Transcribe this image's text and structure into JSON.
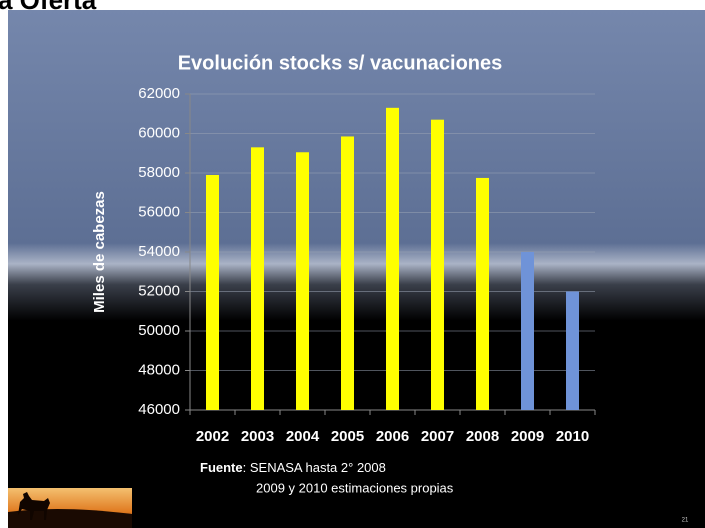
{
  "slide_heading": "a Oferta",
  "chart_data": {
    "type": "bar",
    "title": "Evolución stocks s/ vacunaciones",
    "y_label": "Miles de cabezas",
    "categories": [
      "2002",
      "2003",
      "2004",
      "2005",
      "2006",
      "2007",
      "2008",
      "2009",
      "2010"
    ],
    "values": [
      57900,
      59300,
      59050,
      59850,
      61300,
      60700,
      57750,
      54000,
      52000
    ],
    "colors": [
      "#ffff00",
      "#ffff00",
      "#ffff00",
      "#ffff00",
      "#ffff00",
      "#ffff00",
      "#ffff00",
      "#6f93d8",
      "#6f93d8"
    ],
    "ylim": [
      46000,
      62000
    ],
    "yticks": [
      46000,
      48000,
      50000,
      52000,
      54000,
      56000,
      58000,
      60000,
      62000
    ],
    "grid": true
  },
  "footnote": {
    "label": "Fuente",
    "line1": ": SENASA hasta 2° 2008",
    "line2": "2009 y 2010 estimaciones propias"
  },
  "page_number": "21"
}
